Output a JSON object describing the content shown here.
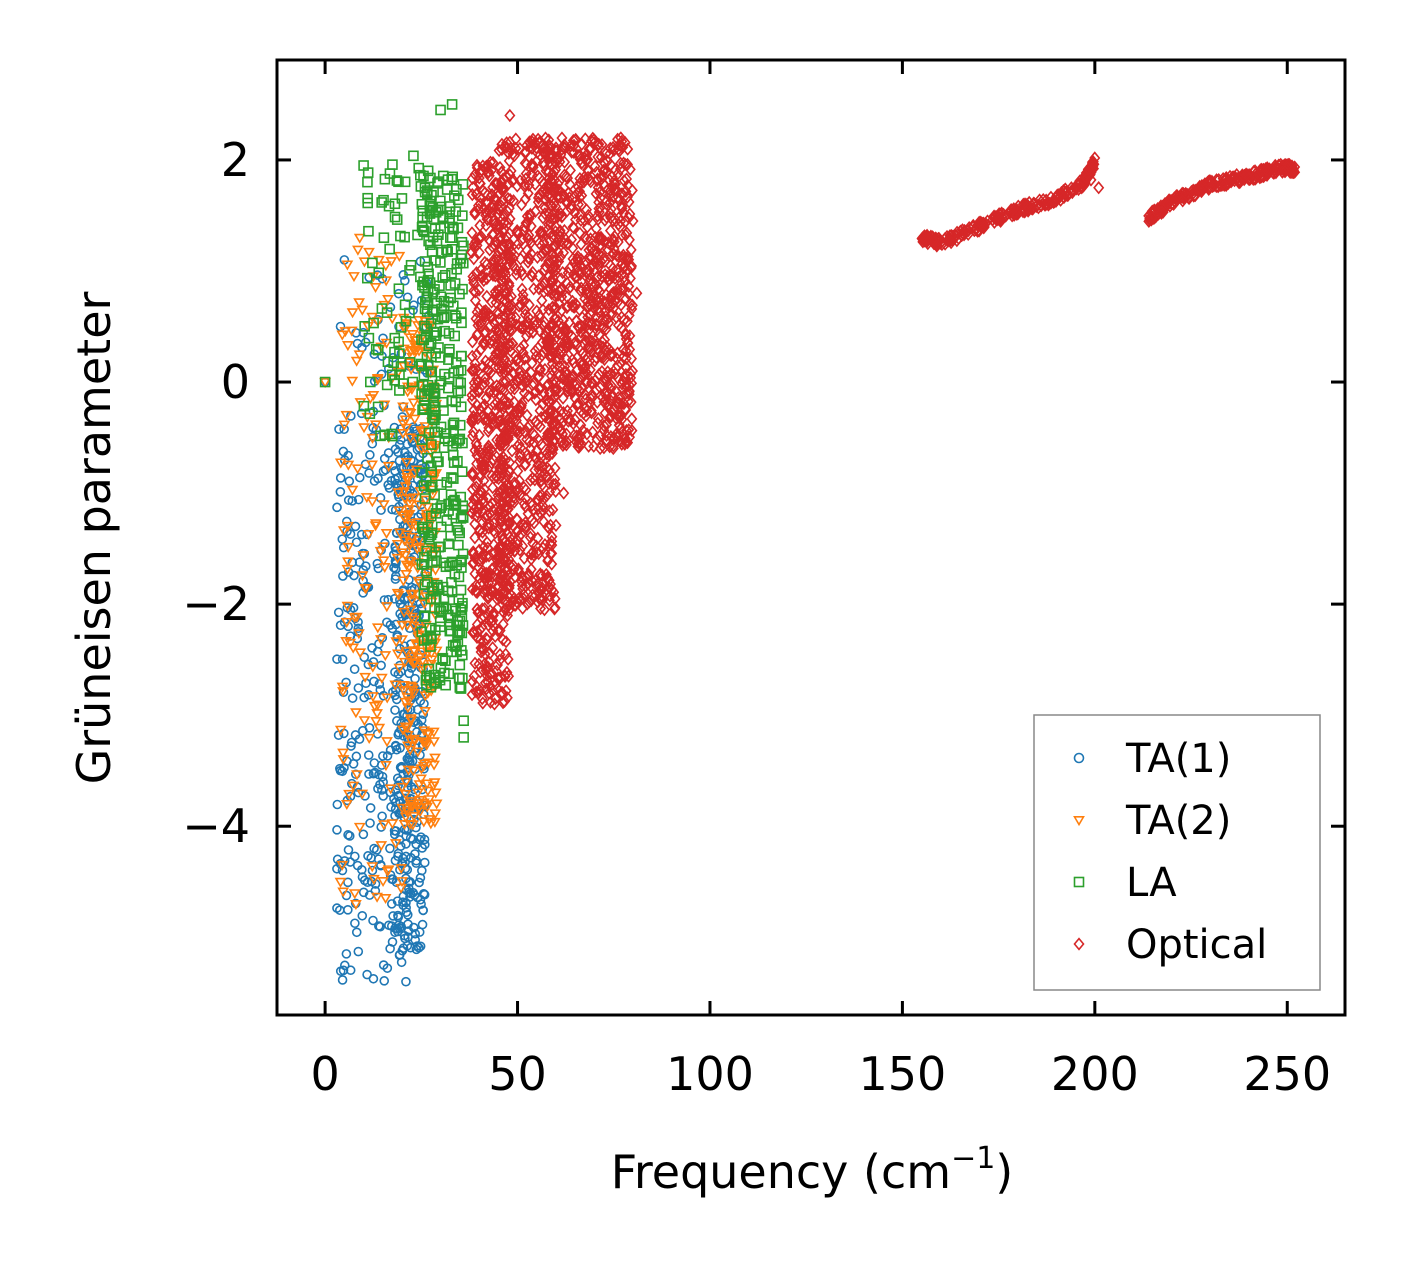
{
  "chart_data": {
    "type": "scatter",
    "xlabel": "Frequency (cm",
    "xlabel_sup": "−1",
    "xlabel_close": ")",
    "ylabel": "Grüneisen parameter",
    "xlim": [
      -12.5,
      265
    ],
    "ylim": [
      -5.7,
      2.9
    ],
    "xticks": [
      0,
      50,
      100,
      150,
      200,
      250
    ],
    "xtick_labels": [
      "0",
      "50",
      "100",
      "150",
      "200",
      "250"
    ],
    "yticks": [
      2,
      0,
      -2,
      -4
    ],
    "ytick_labels": [
      "2",
      "0",
      "−2",
      "−4"
    ],
    "legend_position": "lower-right",
    "series": [
      {
        "name": "TA(1)",
        "marker": "circle",
        "color": "#1f77b4",
        "clusters": [
          {
            "x_range": [
              3,
              22
            ],
            "y_range": [
              -5.4,
              -0.2
            ],
            "count": 280
          },
          {
            "x_range": [
              18,
              26
            ],
            "y_range": [
              -5.2,
              -0.4
            ],
            "count": 320
          },
          {
            "x_range": [
              8,
              27
            ],
            "y_range": [
              0.0,
              1.1
            ],
            "count": 40
          }
        ],
        "points": [
          [
            0,
            0
          ],
          [
            4,
            0.5
          ],
          [
            5,
            1.1
          ],
          [
            21,
            -5.4
          ],
          [
            4,
            -3.5
          ],
          [
            6,
            -2.2
          ]
        ]
      },
      {
        "name": "TA(2)",
        "marker": "triangle-down",
        "color": "#ff7f0e",
        "clusters": [
          {
            "x_range": [
              4,
              20
            ],
            "y_range": [
              -4.7,
              1.3
            ],
            "count": 140
          },
          {
            "x_range": [
              20,
              29
            ],
            "y_range": [
              -4.0,
              0.6
            ],
            "count": 280
          }
        ],
        "points": [
          [
            0,
            0
          ],
          [
            4,
            -4.5
          ],
          [
            8,
            -4.7
          ],
          [
            9,
            1.3
          ],
          [
            14,
            1.1
          ]
        ]
      },
      {
        "name": "LA",
        "marker": "square",
        "color": "#2ca02c",
        "clusters": [
          {
            "x_range": [
              10,
              27
            ],
            "y_range": [
              -0.5,
              2.1
            ],
            "count": 80
          },
          {
            "x_range": [
              25,
              36
            ],
            "y_range": [
              -2.8,
              1.9
            ],
            "count": 360
          }
        ],
        "points": [
          [
            0,
            0
          ],
          [
            10,
            1.95
          ],
          [
            11,
            1.8
          ],
          [
            30,
            2.45
          ],
          [
            33,
            2.5
          ],
          [
            36,
            -3.2
          ],
          [
            36,
            -3.05
          ],
          [
            35,
            -2.75
          ],
          [
            35,
            -2.15
          ]
        ]
      },
      {
        "name": "Optical",
        "marker": "diamond",
        "color": "#d62728",
        "clusters": [
          {
            "x_range": [
              38,
              48
            ],
            "y_range": [
              -2.9,
              2.0
            ],
            "count": 600
          },
          {
            "x_range": [
              45,
              60
            ],
            "y_range": [
              -2.05,
              2.2
            ],
            "count": 700
          },
          {
            "x_range": [
              58,
              80
            ],
            "y_range": [
              -0.6,
              2.2
            ],
            "count": 800
          }
        ],
        "curves": [
          {
            "x": [
              155,
              160,
              170,
              180,
              190,
              197,
              200
            ],
            "y": [
              1.3,
              1.25,
              1.4,
              1.55,
              1.65,
              1.8,
              1.98
            ],
            "count": 260
          },
          {
            "x": [
              214,
              220,
              230,
              240,
              248,
              252
            ],
            "y": [
              1.48,
              1.62,
              1.78,
              1.85,
              1.93,
              1.92
            ],
            "count": 240
          }
        ],
        "points": [
          [
            48,
            2.4
          ],
          [
            57,
            -2.05
          ],
          [
            62,
            -1.0
          ],
          [
            79,
            0.6
          ],
          [
            81,
            0.8
          ],
          [
            80,
            1.45
          ],
          [
            199,
            1.82
          ],
          [
            201,
            1.75
          ]
        ]
      }
    ]
  }
}
